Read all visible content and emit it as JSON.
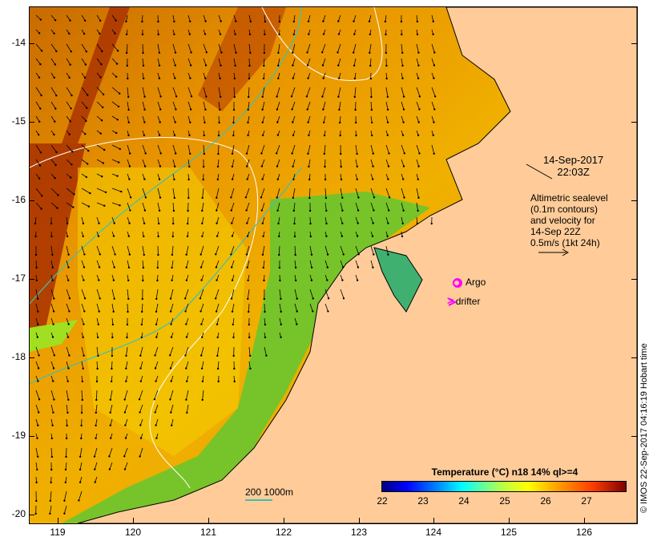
{
  "map": {
    "y_ticks": [
      "-14",
      "-15",
      "-16",
      "-17",
      "-18",
      "-19",
      "-20"
    ],
    "x_ticks": [
      "119",
      "120",
      "121",
      "122",
      "123",
      "124",
      "125",
      "126"
    ],
    "date_line1": "14-Sep-2017",
    "date_line2": "22:03Z",
    "alti_line1": "Altimetric sealevel",
    "alti_line2": "(0.1m contours)",
    "alti_line3": "and velocity for",
    "alti_line4": "14-Sep 22Z",
    "alti_line5": "0.5m/s (1kt 24h)",
    "argo_label": "Argo",
    "drifter_label": "drifter",
    "scale_label": "200  1000m",
    "credit": "© IMOS 22-Sep-2017 04:16:19 Hobart time"
  },
  "colorbar": {
    "title": "Temperature (°C) n18 14% ql>=4",
    "ticks": [
      "22",
      "23",
      "24",
      "25",
      "26",
      "27"
    ]
  },
  "colors": {
    "land": "#ffcc99",
    "warm": "#f0a800",
    "hot": "#a83000",
    "cool": "#40c040",
    "contour_shelf": "#40c0b0",
    "argo": "#ff00ff"
  }
}
